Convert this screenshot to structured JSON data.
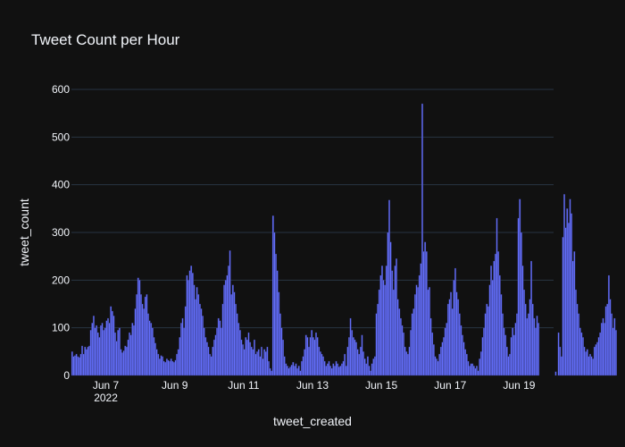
{
  "chart_data": {
    "type": "bar",
    "title": "Tweet Count per Hour",
    "xlabel": "tweet_created",
    "ylabel": "tweet_count",
    "x_start": "2022-06-06T00:00",
    "x_end": "2022-06-20T00:00",
    "bin": "1 hour",
    "ylim": [
      0,
      600
    ],
    "y_ticks": [
      0,
      100,
      200,
      300,
      400,
      500,
      600
    ],
    "x_ticks": [
      {
        "date": "2022-06-07",
        "label": "Jun 7",
        "sublabel": "2022"
      },
      {
        "date": "2022-06-09",
        "label": "Jun 9"
      },
      {
        "date": "2022-06-11",
        "label": "Jun 11"
      },
      {
        "date": "2022-06-13",
        "label": "Jun 13"
      },
      {
        "date": "2022-06-15",
        "label": "Jun 15"
      },
      {
        "date": "2022-06-17",
        "label": "Jun 17"
      },
      {
        "date": "2022-06-19",
        "label": "Jun 19"
      }
    ],
    "grid": true,
    "values": [
      50,
      40,
      42,
      45,
      40,
      38,
      45,
      62,
      45,
      60,
      55,
      60,
      62,
      95,
      110,
      125,
      100,
      105,
      90,
      80,
      105,
      110,
      95,
      100,
      115,
      120,
      110,
      145,
      135,
      125,
      90,
      72,
      95,
      100,
      55,
      48,
      52,
      62,
      60,
      75,
      90,
      85,
      110,
      105,
      140,
      170,
      205,
      200,
      170,
      150,
      140,
      165,
      170,
      130,
      115,
      110,
      100,
      80,
      68,
      55,
      45,
      35,
      42,
      40,
      30,
      28,
      35,
      32,
      30,
      35,
      30,
      28,
      32,
      45,
      55,
      80,
      110,
      120,
      100,
      145,
      210,
      200,
      220,
      230,
      215,
      190,
      160,
      185,
      170,
      150,
      140,
      125,
      100,
      80,
      70,
      60,
      45,
      40,
      60,
      75,
      85,
      100,
      120,
      115,
      100,
      150,
      190,
      200,
      210,
      230,
      262,
      170,
      190,
      175,
      150,
      130,
      110,
      95,
      75,
      65,
      55,
      80,
      75,
      90,
      70,
      60,
      55,
      75,
      45,
      50,
      55,
      40,
      60,
      35,
      55,
      50,
      60,
      30,
      15,
      10,
      335,
      300,
      255,
      220,
      175,
      130,
      100,
      75,
      40,
      25,
      20,
      15,
      18,
      22,
      28,
      20,
      25,
      15,
      20,
      10,
      30,
      40,
      55,
      85,
      80,
      60,
      80,
      95,
      80,
      75,
      90,
      80,
      60,
      50,
      45,
      40,
      30,
      20,
      25,
      30,
      20,
      15,
      25,
      20,
      30,
      25,
      18,
      20,
      25,
      30,
      45,
      20,
      60,
      80,
      120,
      95,
      80,
      75,
      70,
      55,
      45,
      60,
      85,
      50,
      35,
      25,
      40,
      20,
      10,
      25,
      35,
      40,
      130,
      150,
      180,
      210,
      230,
      200,
      190,
      230,
      300,
      368,
      280,
      220,
      180,
      230,
      245,
      160,
      140,
      120,
      105,
      90,
      60,
      50,
      45,
      60,
      95,
      130,
      140,
      170,
      190,
      185,
      210,
      235,
      570,
      260,
      280,
      260,
      180,
      185,
      120,
      90,
      65,
      40,
      35,
      30,
      45,
      60,
      70,
      80,
      100,
      110,
      150,
      160,
      175,
      140,
      200,
      225,
      175,
      160,
      130,
      105,
      85,
      70,
      55,
      45,
      30,
      20,
      25,
      25,
      20,
      15,
      20,
      10,
      35,
      50,
      80,
      100,
      130,
      150,
      145,
      190,
      230,
      200,
      240,
      255,
      330,
      260,
      210,
      170,
      130,
      100,
      85,
      60,
      40,
      45,
      80,
      100,
      85,
      110,
      130,
      330,
      370,
      300,
      230,
      180,
      150,
      120,
      130,
      160,
      240,
      150,
      120,
      100,
      125,
      110,
      0,
      0,
      0,
      0,
      0,
      0,
      0,
      0,
      0,
      0,
      0,
      8,
      0,
      90,
      60,
      40,
      290,
      380,
      310,
      350,
      320,
      370,
      340,
      240,
      260,
      180,
      150,
      130,
      100,
      90,
      80,
      60,
      50,
      55,
      40,
      45,
      40,
      35,
      60,
      65,
      70,
      80,
      90,
      110,
      120,
      110,
      145,
      150,
      210,
      160,
      130,
      100,
      120,
      95
    ],
    "bar_color": "#636efa"
  }
}
